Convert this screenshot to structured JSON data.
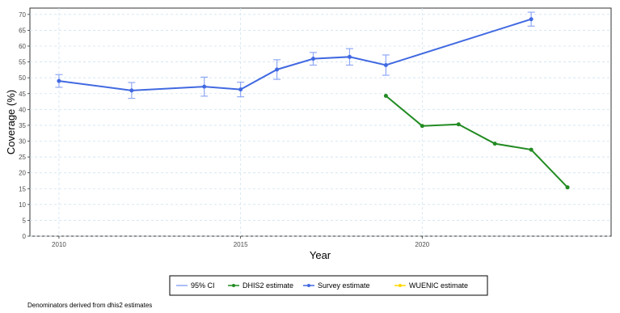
{
  "chart_data": {
    "type": "line",
    "xlabel": "Year",
    "ylabel": "Coverage (%)",
    "xlim": [
      2009.2,
      2025.2
    ],
    "ylim": [
      0,
      72
    ],
    "x_ticks": [
      2010,
      2015,
      2020
    ],
    "y_ticks": [
      0,
      5,
      10,
      15,
      20,
      25,
      30,
      35,
      40,
      45,
      50,
      55,
      60,
      65,
      70
    ],
    "grid": true,
    "legend_position": "bottom",
    "legend": [
      "95% CI",
      "DHIS2 estimate",
      "Survey estimate",
      "WUENIC estimate"
    ],
    "series": [
      {
        "name": "Survey estimate",
        "color": "#4169e1",
        "points": [
          {
            "x": 2010,
            "y": 49.0,
            "lo": 47.0,
            "hi": 51.0
          },
          {
            "x": 2012,
            "y": 46.0,
            "lo": 43.5,
            "hi": 48.5
          },
          {
            "x": 2014,
            "y": 47.2,
            "lo": 44.2,
            "hi": 50.2
          },
          {
            "x": 2015,
            "y": 46.3,
            "lo": 44.0,
            "hi": 48.6
          },
          {
            "x": 2016,
            "y": 52.6,
            "lo": 49.5,
            "hi": 55.7
          },
          {
            "x": 2017,
            "y": 56.0,
            "lo": 54.0,
            "hi": 58.0
          },
          {
            "x": 2018,
            "y": 56.6,
            "lo": 54.0,
            "hi": 59.2
          },
          {
            "x": 2019,
            "y": 54.0,
            "lo": 50.8,
            "hi": 57.2
          },
          {
            "x": 2023,
            "y": 68.5,
            "lo": 66.3,
            "hi": 70.7
          }
        ]
      },
      {
        "name": "DHIS2 estimate",
        "color": "#228b22",
        "points": [
          {
            "x": 2019,
            "y": 44.3
          },
          {
            "x": 2020,
            "y": 34.8
          },
          {
            "x": 2021,
            "y": 35.3
          },
          {
            "x": 2022,
            "y": 29.2
          },
          {
            "x": 2023,
            "y": 27.3
          },
          {
            "x": 2024,
            "y": 15.4
          }
        ]
      },
      {
        "name": "WUENIC estimate",
        "color": "#ffd700",
        "points": []
      }
    ]
  },
  "caption": "Denominators derived from dhis2 estimates",
  "colors": {
    "ci": "#8fa8f5",
    "survey": "#4169e1",
    "dhis2": "#228b22",
    "wuenic": "#ffd700",
    "grid": "#cfe3f0"
  }
}
